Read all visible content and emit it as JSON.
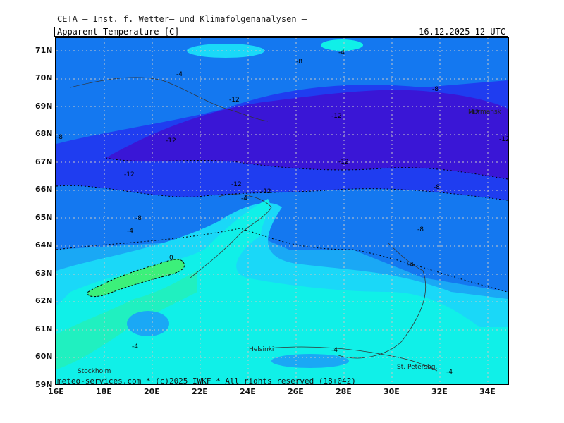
{
  "header": {
    "source": "CETA — Inst. f. Wetter— und Klimafolgenanalysen —",
    "variable": "Apparent_Temperature [C]",
    "valid_time": "16.12.2025 12 UTC"
  },
  "footer": "meteo-services.com * (c)2025 IWKF * All rights reserved (18+042)",
  "lat_labels": [
    "71N",
    "70N",
    "69N",
    "68N",
    "67N",
    "66N",
    "65N",
    "64N",
    "63N",
    "62N",
    "61N",
    "60N",
    "59N"
  ],
  "lon_labels": [
    "16E",
    "18E",
    "20E",
    "22E",
    "24E",
    "26E",
    "28E",
    "30E",
    "32E",
    "34E"
  ],
  "cities": {
    "stockholm": "Stockholm",
    "helsinki": "Helsinki",
    "st_petersburg": "St. Petersbg.",
    "murmansk": "Murmansk"
  },
  "contour_labels": [
    "-4",
    "-4",
    "-8",
    "-8",
    "-12",
    "-12",
    "-12",
    "-12",
    "-12",
    "-12",
    "-12",
    "-12",
    "-12",
    "-8",
    "-8",
    "-8",
    "-8",
    "-4",
    "-4",
    "-4",
    "-4",
    "-4",
    "0",
    "-4"
  ],
  "colors": {
    "very_cold": "#3a16d6",
    "cold": "#1f3df0",
    "mid_cold": "#1478f0",
    "mid": "#1aa8f5",
    "cool": "#1ad8f8",
    "mild": "#10f0e8",
    "warm": "#20f0b0",
    "warmest": "#3cf07a"
  }
}
